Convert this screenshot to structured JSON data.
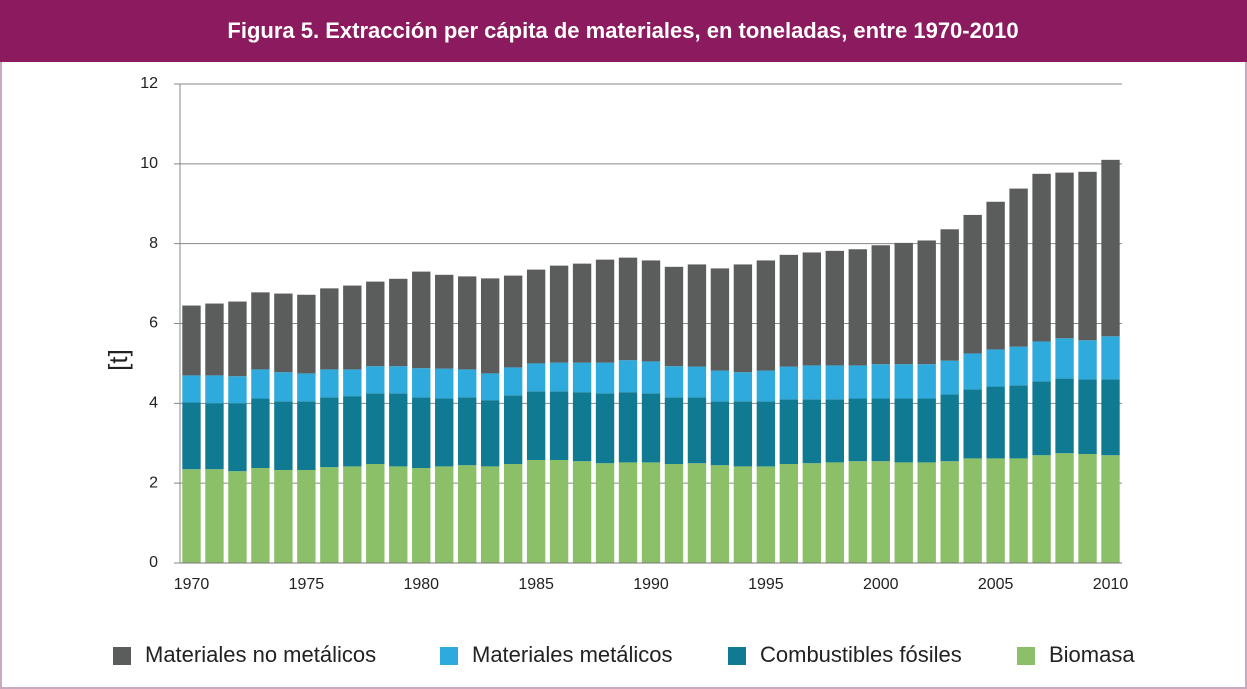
{
  "chart_data": {
    "type": "stacked_bar",
    "title": "Figura 5. Extracción per cápita de materiales, en toneladas, entre 1970-2010",
    "ylabel": "[t]",
    "categories": [
      "1970",
      null,
      null,
      null,
      null,
      "1975",
      null,
      null,
      null,
      null,
      "1980",
      null,
      null,
      null,
      null,
      "1985",
      null,
      null,
      null,
      null,
      "1990",
      null,
      null,
      null,
      null,
      "1995",
      null,
      null,
      null,
      null,
      "2000",
      null,
      null,
      null,
      null,
      "2005",
      null,
      null,
      null,
      null,
      "2010"
    ],
    "series": [
      {
        "name": "Materiales no metálicos",
        "color": "#5b5d5d",
        "values": [
          1.75,
          1.8,
          1.87,
          1.93,
          1.97,
          1.97,
          2.03,
          2.1,
          2.12,
          2.19,
          2.42,
          2.35,
          2.33,
          2.38,
          2.3,
          2.35,
          2.43,
          2.48,
          2.58,
          2.57,
          2.53,
          2.49,
          2.56,
          2.56,
          2.7,
          2.76,
          2.8,
          2.83,
          2.87,
          2.91,
          2.98,
          3.04,
          3.1,
          3.29,
          3.47,
          3.7,
          3.96,
          4.2,
          4.15,
          4.22,
          4.42
        ]
      },
      {
        "name": "Materiales metálicos",
        "color": "#2eaadc",
        "values": [
          0.68,
          0.7,
          0.68,
          0.73,
          0.73,
          0.7,
          0.7,
          0.67,
          0.68,
          0.68,
          0.73,
          0.75,
          0.7,
          0.67,
          0.7,
          0.7,
          0.72,
          0.74,
          0.77,
          0.8,
          0.8,
          0.78,
          0.77,
          0.77,
          0.73,
          0.77,
          0.82,
          0.85,
          0.85,
          0.83,
          0.86,
          0.86,
          0.86,
          0.85,
          0.9,
          0.93,
          0.97,
          1.0,
          1.01,
          0.98,
          1.08
        ]
      },
      {
        "name": "Combustibles fósiles",
        "color": "#117a93",
        "values": [
          1.67,
          1.65,
          1.7,
          1.74,
          1.72,
          1.72,
          1.75,
          1.76,
          1.77,
          1.83,
          1.77,
          1.7,
          1.7,
          1.66,
          1.72,
          1.72,
          1.72,
          1.73,
          1.75,
          1.76,
          1.73,
          1.67,
          1.65,
          1.6,
          1.63,
          1.63,
          1.62,
          1.6,
          1.58,
          1.57,
          1.57,
          1.6,
          1.6,
          1.67,
          1.73,
          1.8,
          1.83,
          1.85,
          1.87,
          1.87,
          1.9
        ]
      },
      {
        "name": "Biomasa",
        "color": "#8cc068",
        "values": [
          2.35,
          2.35,
          2.3,
          2.38,
          2.33,
          2.33,
          2.4,
          2.42,
          2.48,
          2.42,
          2.38,
          2.42,
          2.45,
          2.42,
          2.48,
          2.58,
          2.58,
          2.55,
          2.5,
          2.52,
          2.52,
          2.48,
          2.5,
          2.45,
          2.42,
          2.42,
          2.48,
          2.5,
          2.52,
          2.55,
          2.55,
          2.52,
          2.52,
          2.55,
          2.62,
          2.62,
          2.62,
          2.7,
          2.75,
          2.73,
          2.7
        ]
      }
    ],
    "ylim": [
      0,
      12
    ],
    "yticks": [
      0,
      2,
      4,
      6,
      8,
      10,
      12
    ],
    "grid": true
  }
}
